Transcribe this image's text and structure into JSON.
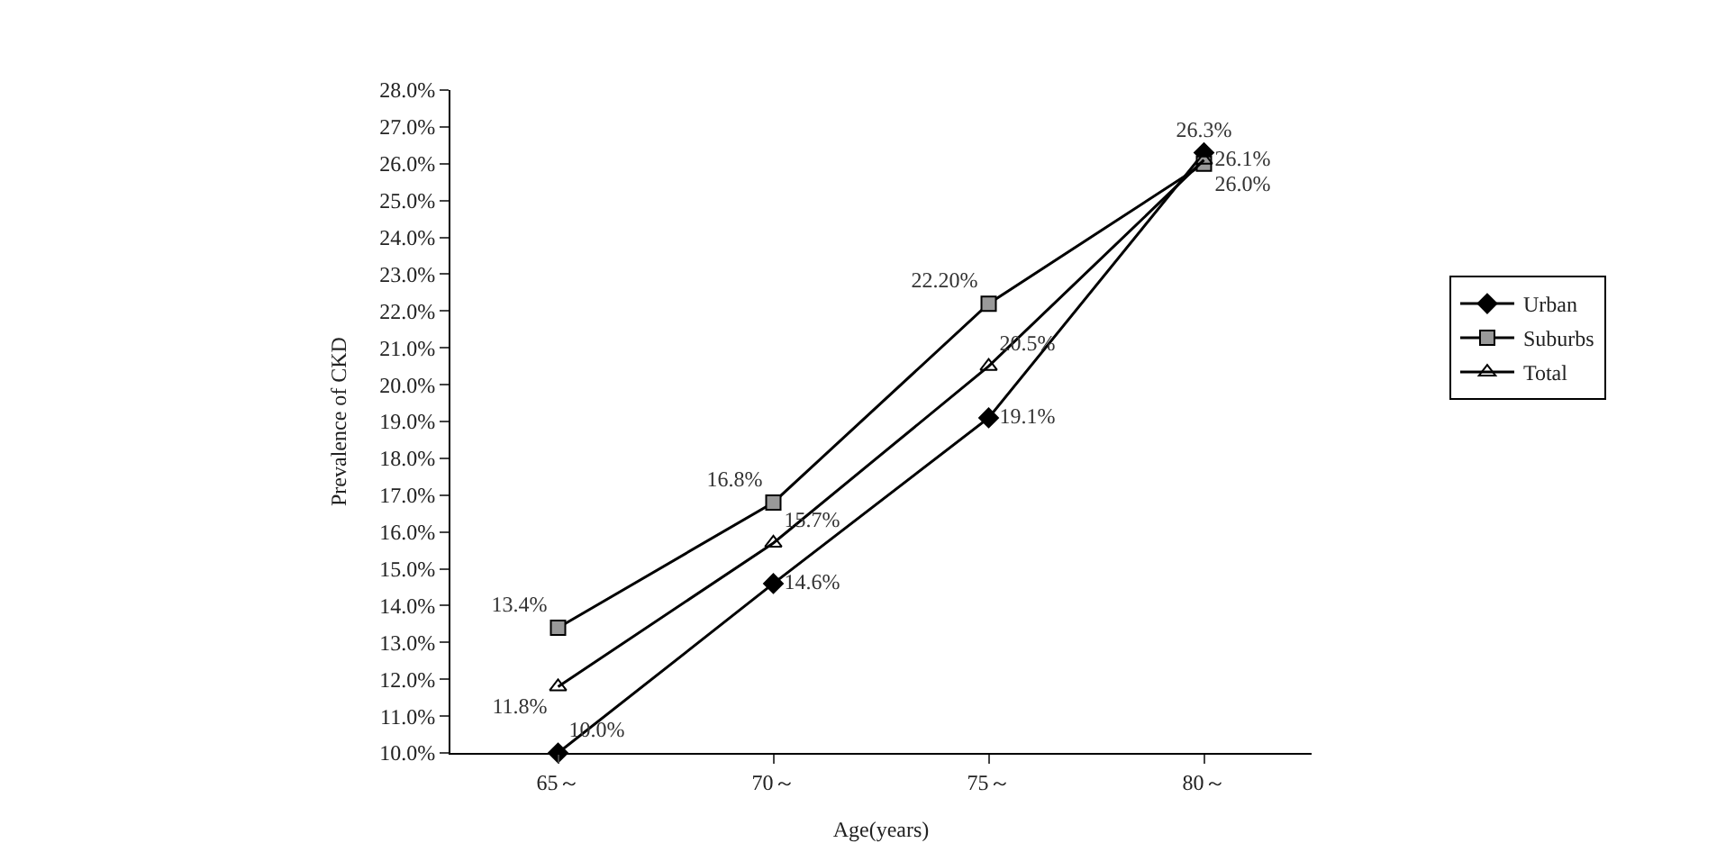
{
  "chart_data": {
    "type": "line",
    "xlabel": "Age(years)",
    "ylabel": "Prevalence of CKD",
    "categories": [
      "65～",
      "70～",
      "75～",
      "80～"
    ],
    "series": [
      {
        "name": "Urban",
        "color": "#000000",
        "marker": "diamond",
        "values": [
          10.0,
          14.6,
          19.1,
          26.3
        ],
        "value_labels": [
          "10.0%",
          "14.6%",
          "19.1%",
          "26.3%"
        ]
      },
      {
        "name": "Suburbs",
        "color": "#000000",
        "marker": "square",
        "values": [
          13.4,
          16.8,
          22.2,
          26.0
        ],
        "value_labels": [
          "13.4%",
          "16.8%",
          "22.20%",
          "26.0%"
        ]
      },
      {
        "name": "Total",
        "color": "#000000",
        "marker": "triangle",
        "values": [
          11.8,
          15.7,
          20.5,
          26.1
        ],
        "value_labels": [
          "11.8%",
          "15.7%",
          "20.5%",
          "26.1%"
        ]
      }
    ],
    "ylim": [
      10,
      28
    ],
    "yticks": [
      {
        "value": 10,
        "label": "10.0%"
      },
      {
        "value": 11,
        "label": "11.0%"
      },
      {
        "value": 12,
        "label": "12.0%"
      },
      {
        "value": 13,
        "label": "13.0%"
      },
      {
        "value": 14,
        "label": "14.0%"
      },
      {
        "value": 15,
        "label": "15.0%"
      },
      {
        "value": 16,
        "label": "16.0%"
      },
      {
        "value": 17,
        "label": "17.0%"
      },
      {
        "value": 18,
        "label": "18.0%"
      },
      {
        "value": 19,
        "label": "19.0%"
      },
      {
        "value": 20,
        "label": "20.0%"
      },
      {
        "value": 21,
        "label": "21.0%"
      },
      {
        "value": 22,
        "label": "22.0%"
      },
      {
        "value": 23,
        "label": "23.0%"
      },
      {
        "value": 24,
        "label": "24.0%"
      },
      {
        "value": 25,
        "label": "25.0%"
      },
      {
        "value": 26,
        "label": "26.0%"
      },
      {
        "value": 27,
        "label": "27.0%"
      },
      {
        "value": 28,
        "label": "28.0%"
      }
    ],
    "legend": "right",
    "line_style": "solid"
  }
}
